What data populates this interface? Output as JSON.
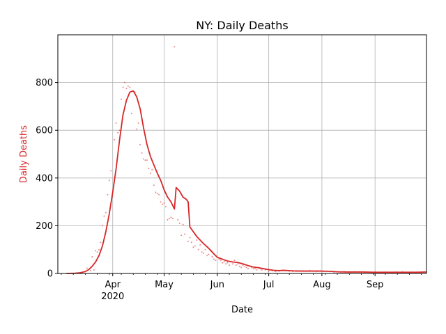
{
  "chart_data": {
    "type": "line",
    "title": "NY: Daily Deaths",
    "xlabel": "Date",
    "ylabel": "Daily Deaths",
    "xlim": [
      "2020-02-29",
      "2020-10-01"
    ],
    "ylim": [
      0,
      1000
    ],
    "grid": true,
    "colors": {
      "series": "#d62728",
      "axis": "#000000",
      "grid": "#b0b0b0"
    },
    "x_ticks": [
      {
        "date": "2020-04-01",
        "label": "Apr",
        "sublabel": "2020"
      },
      {
        "date": "2020-05-01",
        "label": "May",
        "sublabel": ""
      },
      {
        "date": "2020-06-01",
        "label": "Jun",
        "sublabel": ""
      },
      {
        "date": "2020-07-01",
        "label": "Jul",
        "sublabel": ""
      },
      {
        "date": "2020-08-01",
        "label": "Aug",
        "sublabel": ""
      },
      {
        "date": "2020-09-01",
        "label": "Sep",
        "sublabel": ""
      }
    ],
    "y_ticks": [
      0,
      200,
      400,
      600,
      800
    ],
    "series": [
      {
        "kind": "smoothed-line",
        "points": [
          [
            "2020-03-05",
            0
          ],
          [
            "2020-03-10",
            1
          ],
          [
            "2020-03-13",
            3
          ],
          [
            "2020-03-16",
            8
          ],
          [
            "2020-03-18",
            16
          ],
          [
            "2020-03-20",
            30
          ],
          [
            "2020-03-22",
            48
          ],
          [
            "2020-03-24",
            75
          ],
          [
            "2020-03-26",
            115
          ],
          [
            "2020-03-28",
            175
          ],
          [
            "2020-03-30",
            250
          ],
          [
            "2020-04-01",
            340
          ],
          [
            "2020-04-03",
            440
          ],
          [
            "2020-04-05",
            560
          ],
          [
            "2020-04-07",
            665
          ],
          [
            "2020-04-09",
            725
          ],
          [
            "2020-04-11",
            760
          ],
          [
            "2020-04-13",
            765
          ],
          [
            "2020-04-15",
            740
          ],
          [
            "2020-04-17",
            690
          ],
          [
            "2020-04-19",
            610
          ],
          [
            "2020-04-21",
            540
          ],
          [
            "2020-04-23",
            490
          ],
          [
            "2020-04-25",
            455
          ],
          [
            "2020-04-27",
            420
          ],
          [
            "2020-04-29",
            390
          ],
          [
            "2020-05-01",
            350
          ],
          [
            "2020-05-03",
            320
          ],
          [
            "2020-05-05",
            300
          ],
          [
            "2020-05-07",
            270
          ],
          [
            "2020-05-08",
            360
          ],
          [
            "2020-05-10",
            345
          ],
          [
            "2020-05-12",
            320
          ],
          [
            "2020-05-14",
            310
          ],
          [
            "2020-05-15",
            300
          ],
          [
            "2020-05-16",
            195
          ],
          [
            "2020-05-18",
            175
          ],
          [
            "2020-05-20",
            155
          ],
          [
            "2020-05-22",
            140
          ],
          [
            "2020-05-24",
            125
          ],
          [
            "2020-05-26",
            112
          ],
          [
            "2020-05-28",
            98
          ],
          [
            "2020-05-30",
            82
          ],
          [
            "2020-06-01",
            68
          ],
          [
            "2020-06-04",
            60
          ],
          [
            "2020-06-07",
            52
          ],
          [
            "2020-06-10",
            48
          ],
          [
            "2020-06-13",
            46
          ],
          [
            "2020-06-16",
            40
          ],
          [
            "2020-06-19",
            33
          ],
          [
            "2020-06-22",
            27
          ],
          [
            "2020-06-25",
            24
          ],
          [
            "2020-06-28",
            20
          ],
          [
            "2020-07-01",
            16
          ],
          [
            "2020-07-04",
            13
          ],
          [
            "2020-07-07",
            12
          ],
          [
            "2020-07-10",
            13
          ],
          [
            "2020-07-15",
            11
          ],
          [
            "2020-07-20",
            10
          ],
          [
            "2020-07-25",
            10
          ],
          [
            "2020-07-30",
            10
          ],
          [
            "2020-08-05",
            9
          ],
          [
            "2020-08-10",
            7
          ],
          [
            "2020-08-15",
            6
          ],
          [
            "2020-08-20",
            6
          ],
          [
            "2020-08-25",
            6
          ],
          [
            "2020-08-31",
            5
          ],
          [
            "2020-09-05",
            5
          ],
          [
            "2020-09-10",
            5
          ],
          [
            "2020-09-15",
            5
          ],
          [
            "2020-09-20",
            5
          ],
          [
            "2020-09-25",
            5
          ],
          [
            "2020-10-01",
            6
          ]
        ]
      },
      {
        "kind": "daily-points",
        "points": [
          [
            "2020-03-16",
            8
          ],
          [
            "2020-03-17",
            22
          ],
          [
            "2020-03-19",
            12
          ],
          [
            "2020-03-20",
            70
          ],
          [
            "2020-03-21",
            15
          ],
          [
            "2020-03-22",
            95
          ],
          [
            "2020-03-23",
            90
          ],
          [
            "2020-03-24",
            100
          ],
          [
            "2020-03-25",
            130
          ],
          [
            "2020-03-26",
            200
          ],
          [
            "2020-03-27",
            240
          ],
          [
            "2020-03-28",
            255
          ],
          [
            "2020-03-29",
            330
          ],
          [
            "2020-03-30",
            390
          ],
          [
            "2020-03-31",
            430
          ],
          [
            "2020-04-02",
            560
          ],
          [
            "2020-04-03",
            630
          ],
          [
            "2020-04-04",
            590
          ],
          [
            "2020-04-05",
            600
          ],
          [
            "2020-04-06",
            730
          ],
          [
            "2020-04-07",
            780
          ],
          [
            "2020-04-08",
            800
          ],
          [
            "2020-04-09",
            775
          ],
          [
            "2020-04-10",
            785
          ],
          [
            "2020-04-11",
            780
          ],
          [
            "2020-04-12",
            670
          ],
          [
            "2020-04-14",
            760
          ],
          [
            "2020-04-15",
            605
          ],
          [
            "2020-04-16",
            630
          ],
          [
            "2020-04-17",
            540
          ],
          [
            "2020-04-18",
            505
          ],
          [
            "2020-04-19",
            480
          ],
          [
            "2020-04-20",
            475
          ],
          [
            "2020-04-21",
            475
          ],
          [
            "2020-04-22",
            440
          ],
          [
            "2020-04-23",
            420
          ],
          [
            "2020-04-24",
            435
          ],
          [
            "2020-04-25",
            370
          ],
          [
            "2020-04-26",
            340
          ],
          [
            "2020-04-27",
            335
          ],
          [
            "2020-04-28",
            330
          ],
          [
            "2020-04-29",
            300
          ],
          [
            "2020-04-30",
            290
          ],
          [
            "2020-05-01",
            295
          ],
          [
            "2020-05-02",
            280
          ],
          [
            "2020-05-03",
            225
          ],
          [
            "2020-05-04",
            230
          ],
          [
            "2020-05-05",
            235
          ],
          [
            "2020-05-06",
            230
          ],
          [
            "2020-05-07",
            950
          ],
          [
            "2020-05-09",
            225
          ],
          [
            "2020-05-10",
            210
          ],
          [
            "2020-05-11",
            160
          ],
          [
            "2020-05-12",
            205
          ],
          [
            "2020-05-13",
            165
          ],
          [
            "2020-05-15",
            135
          ],
          [
            "2020-05-16",
            150
          ],
          [
            "2020-05-17",
            130
          ],
          [
            "2020-05-18",
            110
          ],
          [
            "2020-05-19",
            115
          ],
          [
            "2020-05-20",
            140
          ],
          [
            "2020-05-21",
            100
          ],
          [
            "2020-05-22",
            120
          ],
          [
            "2020-05-23",
            90
          ],
          [
            "2020-05-24",
            85
          ],
          [
            "2020-05-25",
            100
          ],
          [
            "2020-05-26",
            75
          ],
          [
            "2020-05-27",
            80
          ],
          [
            "2020-05-28",
            95
          ],
          [
            "2020-05-29",
            70
          ],
          [
            "2020-05-30",
            60
          ],
          [
            "2020-05-31",
            55
          ],
          [
            "2020-06-02",
            60
          ],
          [
            "2020-06-03",
            55
          ],
          [
            "2020-06-04",
            45
          ],
          [
            "2020-06-05",
            50
          ],
          [
            "2020-06-06",
            40
          ],
          [
            "2020-06-07",
            45
          ],
          [
            "2020-06-08",
            35
          ],
          [
            "2020-06-09",
            50
          ],
          [
            "2020-06-10",
            40
          ],
          [
            "2020-06-11",
            55
          ],
          [
            "2020-06-12",
            35
          ],
          [
            "2020-06-13",
            40
          ],
          [
            "2020-06-14",
            30
          ],
          [
            "2020-06-15",
            25
          ],
          [
            "2020-06-16",
            35
          ],
          [
            "2020-06-17",
            30
          ],
          [
            "2020-06-18",
            25
          ],
          [
            "2020-06-19",
            20
          ],
          [
            "2020-06-20",
            30
          ],
          [
            "2020-06-21",
            25
          ],
          [
            "2020-06-22",
            20
          ],
          [
            "2020-06-23",
            20
          ],
          [
            "2020-06-24",
            15
          ],
          [
            "2020-06-25",
            25
          ],
          [
            "2020-06-26",
            20
          ],
          [
            "2020-06-27",
            15
          ],
          [
            "2020-06-28",
            20
          ],
          [
            "2020-06-29",
            15
          ],
          [
            "2020-07-01",
            10
          ],
          [
            "2020-07-03",
            12
          ],
          [
            "2020-07-05",
            8
          ],
          [
            "2020-07-07",
            10
          ],
          [
            "2020-07-09",
            14
          ],
          [
            "2020-07-11",
            12
          ],
          [
            "2020-07-13",
            10
          ],
          [
            "2020-07-15",
            8
          ],
          [
            "2020-07-17",
            9
          ],
          [
            "2020-07-19",
            10
          ],
          [
            "2020-07-21",
            11
          ],
          [
            "2020-07-23",
            9
          ],
          [
            "2020-07-25",
            12
          ],
          [
            "2020-07-27",
            10
          ],
          [
            "2020-07-29",
            8
          ],
          [
            "2020-07-31",
            11
          ],
          [
            "2020-08-02",
            9
          ],
          [
            "2020-08-04",
            10
          ],
          [
            "2020-08-06",
            8
          ],
          [
            "2020-08-08",
            6
          ],
          [
            "2020-08-10",
            7
          ],
          [
            "2020-08-12",
            5
          ],
          [
            "2020-08-14",
            8
          ],
          [
            "2020-08-16",
            6
          ],
          [
            "2020-08-18",
            5
          ],
          [
            "2020-08-20",
            7
          ],
          [
            "2020-08-22",
            6
          ],
          [
            "2020-08-24",
            5
          ],
          [
            "2020-08-26",
            4
          ],
          [
            "2020-08-28",
            6
          ],
          [
            "2020-08-30",
            5
          ],
          [
            "2020-09-01",
            6
          ],
          [
            "2020-09-03",
            4
          ],
          [
            "2020-09-05",
            5
          ],
          [
            "2020-09-07",
            6
          ],
          [
            "2020-09-09",
            5
          ],
          [
            "2020-09-11",
            4
          ],
          [
            "2020-09-13",
            6
          ],
          [
            "2020-09-15",
            5
          ],
          [
            "2020-09-17",
            7
          ],
          [
            "2020-09-19",
            5
          ],
          [
            "2020-09-21",
            4
          ],
          [
            "2020-09-23",
            6
          ],
          [
            "2020-09-25",
            5
          ],
          [
            "2020-09-27",
            4
          ],
          [
            "2020-09-29",
            6
          ]
        ]
      }
    ]
  }
}
